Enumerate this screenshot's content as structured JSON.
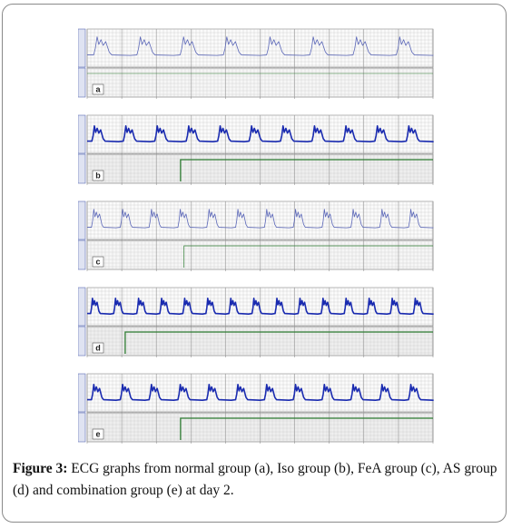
{
  "figure": {
    "panels": [
      {
        "id": "a",
        "label": "a",
        "trace_color": "#5b67b8",
        "trace_weight": "thin",
        "beats": 8,
        "step_after_fraction": null
      },
      {
        "id": "b",
        "label": "b",
        "trace_color": "#1a2bb0",
        "trace_weight": "bold",
        "beats": 11,
        "step_after_fraction": 0.27
      },
      {
        "id": "c",
        "label": "c",
        "trace_color": "#5b67b8",
        "trace_weight": "thin",
        "beats": 12,
        "step_after_fraction": 0.28
      },
      {
        "id": "d",
        "label": "d",
        "trace_color": "#1a2bb0",
        "trace_weight": "bold",
        "beats": 15,
        "step_after_fraction": 0.11
      },
      {
        "id": "e",
        "label": "e",
        "trace_color": "#1a2bb0",
        "trace_weight": "bold",
        "beats": 12,
        "step_after_fraction": 0.27
      }
    ],
    "colors": {
      "grid": "#c9c9c9",
      "grid_major": "#8a8a8a",
      "sidebar": "#5b6bb3",
      "step_line": "#2e7d32"
    }
  },
  "caption": {
    "label": "Figure 3:",
    "text": " ECG graphs from normal group (a), Iso group (b), FeA group (c), AS group (d) and combination group (e) at day 2."
  }
}
